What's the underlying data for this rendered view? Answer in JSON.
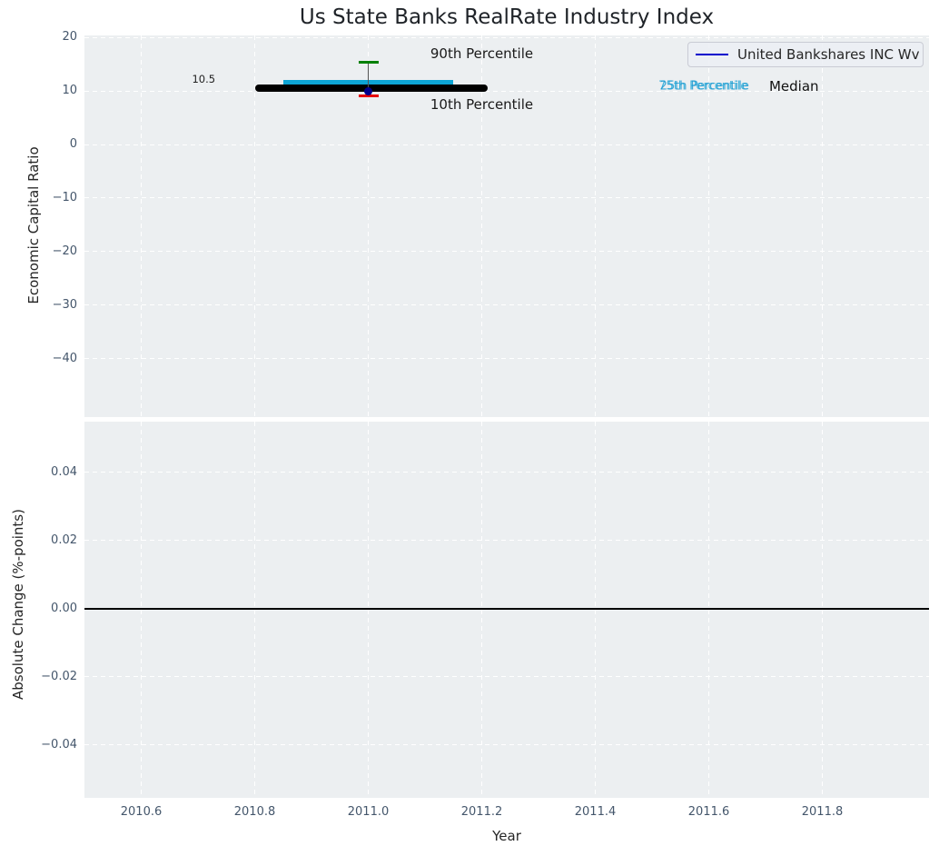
{
  "chart_data": {
    "type": "line",
    "title": "Us State Banks RealRate Industry Index",
    "x": {
      "label": "Year",
      "lim": [
        2010.5,
        2011.988
      ],
      "ticks": [
        {
          "v": 2010.6,
          "label": "2010.6"
        },
        {
          "v": 2010.8,
          "label": "2010.8"
        },
        {
          "v": 2011.0,
          "label": "2011.0"
        },
        {
          "v": 2011.2,
          "label": "2011.2"
        },
        {
          "v": 2011.4,
          "label": "2011.4"
        },
        {
          "v": 2011.6,
          "label": "2011.6"
        },
        {
          "v": 2011.8,
          "label": "2011.8"
        }
      ]
    },
    "legend": {
      "label": "United Bankshares INC Wv",
      "line_color": "#0000cc"
    },
    "panels": [
      {
        "name": "economic-capital-ratio",
        "ylabel": "Economic Capital Ratio",
        "ylim": [
          -50.85,
          20.34
        ],
        "yticks": [
          {
            "v": 20,
            "label": "20"
          },
          {
            "v": 10,
            "label": "10"
          },
          {
            "v": 0,
            "label": "0"
          },
          {
            "v": -10,
            "label": "−10"
          },
          {
            "v": -20,
            "label": "−20"
          },
          {
            "v": -30,
            "label": "−30"
          },
          {
            "v": -40,
            "label": "−40"
          }
        ],
        "series": [
          {
            "name": "United Bankshares INC Wv",
            "type": "thick-line",
            "color": "#000000",
            "y": 10.5,
            "x_start": 2010.8,
            "x_end": 2011.21,
            "value_label": "10.5"
          },
          {
            "name": "25th-75th Percentile Band",
            "type": "band",
            "color": "#0da5d5",
            "y_low": 9.85,
            "y_high": 12.1,
            "x_start": 2010.85,
            "x_end": 2011.15
          },
          {
            "name": "Percentile Whisker",
            "type": "whisker",
            "x": 2011.0,
            "p90": 15.3,
            "p10": 9.1,
            "center": 10.0,
            "p90_color": "#008000",
            "p10_color": "#e50000",
            "line_color": "#555555",
            "marker_color": "#00008b"
          }
        ],
        "annotations": [
          {
            "text": "90th Percentile",
            "x": 2011.2,
            "y": 16.95,
            "color": "#1a1a1a",
            "size": 15,
            "dx": 0
          },
          {
            "text": "10th Percentile",
            "x": 2011.2,
            "y": 7.45,
            "color": "#1a1a1a",
            "size": 15,
            "dx": 0
          },
          {
            "text": "75th Percentile",
            "x": 2011.59,
            "y": 10.85,
            "color": "#14a5d8",
            "size": 13,
            "dx": 0,
            "opacity": 0.8
          },
          {
            "text": "25th Percentile",
            "x": 2011.59,
            "y": 10.85,
            "color": "#1496cf",
            "size": 13,
            "dx": 1.5,
            "opacity": 0.8
          },
          {
            "text": "Median",
            "x": 2011.75,
            "y": 10.85,
            "color": "#111111",
            "size": 15,
            "dx": 0
          },
          {
            "text": "10.5",
            "x": 2010.71,
            "y": 12.2,
            "color": "#222222",
            "size": 11.5,
            "dx": 0
          }
        ]
      },
      {
        "name": "absolute-change",
        "ylabel": "Absolute Change (%-points)",
        "ylim": [
          -0.0555,
          0.0549
        ],
        "yticks": [
          {
            "v": 0.04,
            "label": "0.04"
          },
          {
            "v": 0.02,
            "label": "0.02"
          },
          {
            "v": 0.0,
            "label": "0.00"
          },
          {
            "v": -0.02,
            "label": "−0.02"
          },
          {
            "v": -0.04,
            "label": "−0.04"
          }
        ],
        "zero_line": {
          "y": 0.0,
          "color": "#000000"
        }
      }
    ]
  }
}
